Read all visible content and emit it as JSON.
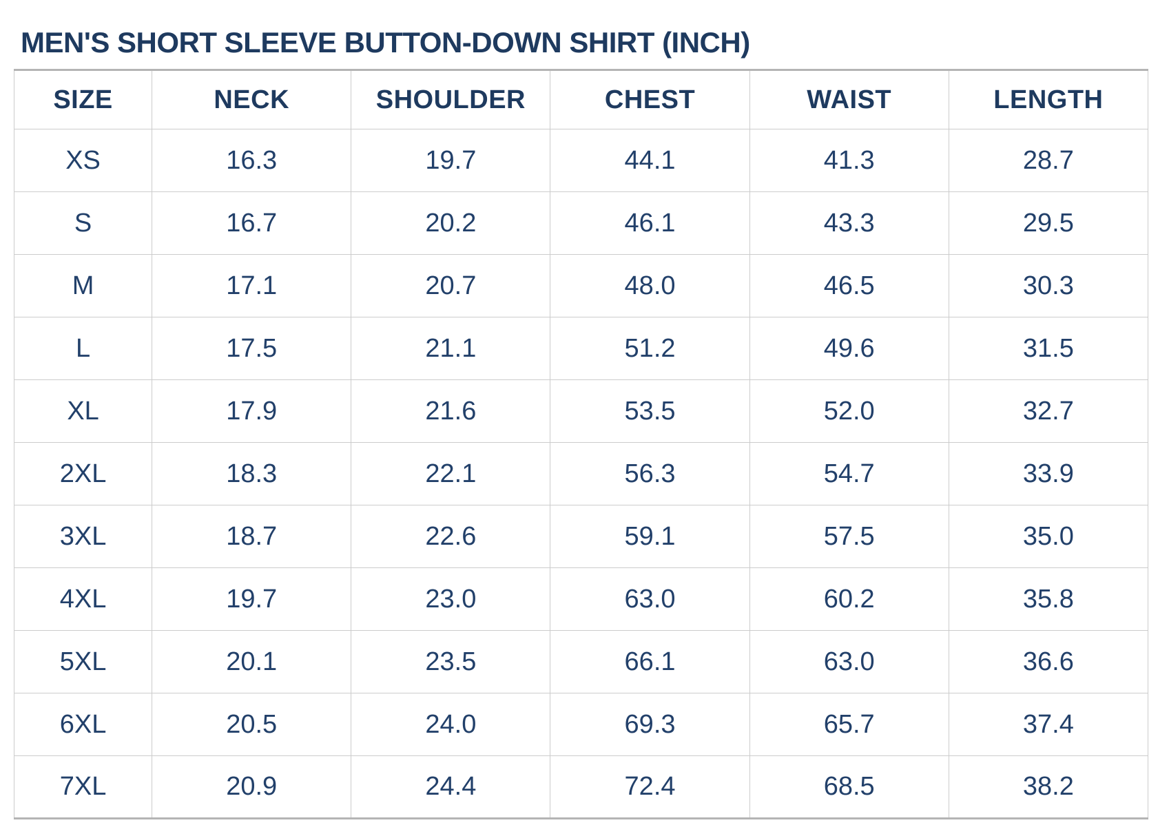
{
  "title": "MEN'S SHORT SLEEVE BUTTON-DOWN SHIRT (INCH)",
  "colors": {
    "title_color": "#1e3a5f",
    "header_color": "#1e3a5f",
    "cell_color": "#22406a",
    "border_inner": "#cccccc",
    "border_outer": "#b4b4b4",
    "page_bg": "#ffffff"
  },
  "table": {
    "headers": [
      "SIZE",
      "NECK",
      "SHOULDER",
      "CHEST",
      "WAIST",
      "LENGTH"
    ],
    "rows": [
      [
        "XS",
        "16.3",
        "19.7",
        "44.1",
        "41.3",
        "28.7"
      ],
      [
        "S",
        "16.7",
        "20.2",
        "46.1",
        "43.3",
        "29.5"
      ],
      [
        "M",
        "17.1",
        "20.7",
        "48.0",
        "46.5",
        "30.3"
      ],
      [
        "L",
        "17.5",
        "21.1",
        "51.2",
        "49.6",
        "31.5"
      ],
      [
        "XL",
        "17.9",
        "21.6",
        "53.5",
        "52.0",
        "32.7"
      ],
      [
        "2XL",
        "18.3",
        "22.1",
        "56.3",
        "54.7",
        "33.9"
      ],
      [
        "3XL",
        "18.7",
        "22.6",
        "59.1",
        "57.5",
        "35.0"
      ],
      [
        "4XL",
        "19.7",
        "23.0",
        "63.0",
        "60.2",
        "35.8"
      ],
      [
        "5XL",
        "20.1",
        "23.5",
        "66.1",
        "63.0",
        "36.6"
      ],
      [
        "6XL",
        "20.5",
        "24.0",
        "69.3",
        "65.7",
        "37.4"
      ],
      [
        "7XL",
        "20.9",
        "24.4",
        "72.4",
        "68.5",
        "38.2"
      ]
    ]
  },
  "chart_data": {
    "type": "table",
    "title": "MEN'S SHORT SLEEVE BUTTON-DOWN SHIRT (INCH)",
    "unit": "inch",
    "columns": [
      "SIZE",
      "NECK",
      "SHOULDER",
      "CHEST",
      "WAIST",
      "LENGTH"
    ],
    "rows": [
      {
        "size": "XS",
        "neck": 16.3,
        "shoulder": 19.7,
        "chest": 44.1,
        "waist": 41.3,
        "length": 28.7
      },
      {
        "size": "S",
        "neck": 16.7,
        "shoulder": 20.2,
        "chest": 46.1,
        "waist": 43.3,
        "length": 29.5
      },
      {
        "size": "M",
        "neck": 17.1,
        "shoulder": 20.7,
        "chest": 48.0,
        "waist": 46.5,
        "length": 30.3
      },
      {
        "size": "L",
        "neck": 17.5,
        "shoulder": 21.1,
        "chest": 51.2,
        "waist": 49.6,
        "length": 31.5
      },
      {
        "size": "XL",
        "neck": 17.9,
        "shoulder": 21.6,
        "chest": 53.5,
        "waist": 52.0,
        "length": 32.7
      },
      {
        "size": "2XL",
        "neck": 18.3,
        "shoulder": 22.1,
        "chest": 56.3,
        "waist": 54.7,
        "length": 33.9
      },
      {
        "size": "3XL",
        "neck": 18.7,
        "shoulder": 22.6,
        "chest": 59.1,
        "waist": 57.5,
        "length": 35.0
      },
      {
        "size": "4XL",
        "neck": 19.7,
        "shoulder": 23.0,
        "chest": 63.0,
        "waist": 60.2,
        "length": 35.8
      },
      {
        "size": "5XL",
        "neck": 20.1,
        "shoulder": 23.5,
        "chest": 66.1,
        "waist": 63.0,
        "length": 36.6
      },
      {
        "size": "6XL",
        "neck": 20.5,
        "shoulder": 24.0,
        "chest": 69.3,
        "waist": 65.7,
        "length": 37.4
      },
      {
        "size": "7XL",
        "neck": 20.9,
        "shoulder": 24.4,
        "chest": 72.4,
        "waist": 68.5,
        "length": 38.2
      }
    ]
  }
}
